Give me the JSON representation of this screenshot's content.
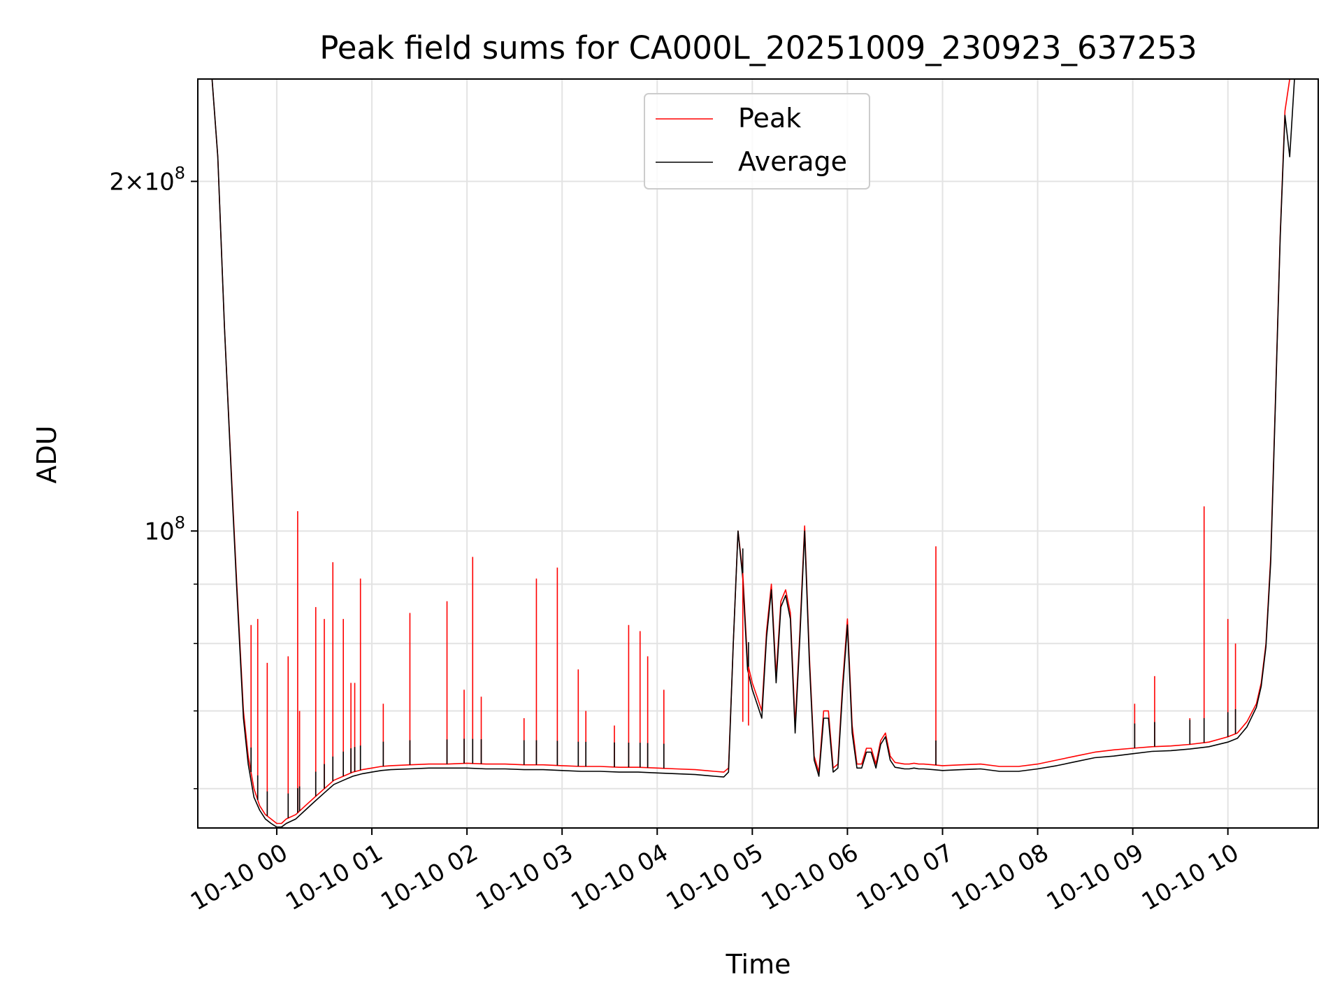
{
  "chart_data": {
    "type": "line",
    "title": "Peak field sums for CA000L_20251009_230923_637253",
    "xlabel": "Time",
    "ylabel": "ADU",
    "yscale": "log",
    "ylim": [
      55500000,
      245000000
    ],
    "xlim_hours": [
      -0.83,
      10.95
    ],
    "grid": true,
    "legend_position": "top-center",
    "x_tick_hours": [
      0,
      1,
      2,
      3,
      4,
      5,
      6,
      7,
      8,
      9,
      10
    ],
    "x_tick_labels": [
      "10-10 00",
      "10-10 01",
      "10-10 02",
      "10-10 03",
      "10-10 04",
      "10-10 05",
      "10-10 06",
      "10-10 07",
      "10-10 08",
      "10-10 09",
      "10-10 10"
    ],
    "y_major_ticks": [
      {
        "value": 100000000,
        "mantissa": "",
        "exponent": "8"
      },
      {
        "value": 200000000,
        "mantissa": "2",
        "exponent": "8"
      }
    ],
    "y_minor_ticks": [
      60000000,
      70000000,
      80000000,
      90000000
    ],
    "series": [
      {
        "name": "Peak",
        "color": "#ff0000",
        "x_hours": [
          -0.83,
          -0.68,
          -0.62,
          -0.55,
          -0.46,
          -0.42,
          -0.38,
          -0.35,
          -0.3,
          -0.24,
          -0.18,
          -0.12,
          -0.06,
          0.0,
          0.05,
          0.1,
          0.2,
          0.3,
          0.4,
          0.5,
          0.6,
          0.7,
          0.8,
          0.9,
          1.0,
          1.1,
          1.2,
          1.4,
          1.6,
          1.8,
          2.0,
          2.2,
          2.4,
          2.6,
          2.8,
          3.0,
          3.2,
          3.4,
          3.6,
          3.8,
          4.0,
          4.2,
          4.4,
          4.6,
          4.7,
          4.75,
          4.8,
          4.85,
          4.9,
          4.95,
          5.0,
          5.05,
          5.1,
          5.15,
          5.2,
          5.25,
          5.3,
          5.35,
          5.4,
          5.45,
          5.5,
          5.55,
          5.6,
          5.65,
          5.7,
          5.75,
          5.8,
          5.85,
          5.9,
          5.95,
          6.0,
          6.05,
          6.1,
          6.15,
          6.2,
          6.25,
          6.3,
          6.35,
          6.4,
          6.45,
          6.5,
          6.55,
          6.6,
          6.65,
          6.7,
          6.75,
          6.8,
          6.9,
          7.0,
          7.2,
          7.4,
          7.6,
          7.8,
          8.0,
          8.2,
          8.4,
          8.6,
          8.8,
          9.0,
          9.2,
          9.4,
          9.6,
          9.8,
          10.0,
          10.1,
          10.2,
          10.3,
          10.35,
          10.4,
          10.45,
          10.5,
          10.55,
          10.6,
          10.65,
          10.7,
          10.75,
          10.8,
          10.95
        ],
        "values": [
          245000000,
          245000000,
          210000000,
          150000000,
          105000000,
          90000000,
          78000000,
          70000000,
          64000000,
          60000000,
          58000000,
          57000000,
          56500000,
          56000000,
          56000000,
          56500000,
          57000000,
          58000000,
          59000000,
          60000000,
          61000000,
          61500000,
          62000000,
          62300000,
          62500000,
          62700000,
          62800000,
          62900000,
          63000000,
          63000000,
          63100000,
          63000000,
          63000000,
          62900000,
          62900000,
          62800000,
          62700000,
          62700000,
          62600000,
          62600000,
          62500000,
          62400000,
          62300000,
          62100000,
          62000000,
          62500000,
          80000000,
          100000000,
          92000000,
          77000000,
          74000000,
          72000000,
          70000000,
          82000000,
          90000000,
          75000000,
          87000000,
          89000000,
          85000000,
          68000000,
          82000000,
          101000000,
          78000000,
          64000000,
          62000000,
          70000000,
          70000000,
          62500000,
          63000000,
          74000000,
          84000000,
          68000000,
          63000000,
          63000000,
          65000000,
          65000000,
          63000000,
          66000000,
          67000000,
          64000000,
          63200000,
          63100000,
          63000000,
          63000000,
          63100000,
          63000000,
          63000000,
          62900000,
          62800000,
          62900000,
          63000000,
          62700000,
          62700000,
          63000000,
          63500000,
          64000000,
          64500000,
          64800000,
          65000000,
          65200000,
          65300000,
          65500000,
          65800000,
          66500000,
          67000000,
          68500000,
          71000000,
          74000000,
          80000000,
          95000000,
          130000000,
          180000000,
          230000000,
          245000000,
          245000000,
          245000000,
          245000000,
          245000000
        ]
      },
      {
        "name": "Average",
        "color": "#000000",
        "x_hours": [
          -0.83,
          -0.68,
          -0.62,
          -0.55,
          -0.46,
          -0.42,
          -0.38,
          -0.35,
          -0.3,
          -0.24,
          -0.18,
          -0.12,
          -0.06,
          0.0,
          0.05,
          0.1,
          0.2,
          0.3,
          0.4,
          0.5,
          0.6,
          0.7,
          0.8,
          0.9,
          1.0,
          1.1,
          1.2,
          1.4,
          1.6,
          1.8,
          2.0,
          2.2,
          2.4,
          2.6,
          2.8,
          3.0,
          3.2,
          3.4,
          3.6,
          3.8,
          4.0,
          4.2,
          4.4,
          4.6,
          4.7,
          4.75,
          4.8,
          4.85,
          4.9,
          4.95,
          5.0,
          5.05,
          5.1,
          5.15,
          5.2,
          5.25,
          5.3,
          5.35,
          5.4,
          5.45,
          5.5,
          5.55,
          5.6,
          5.65,
          5.7,
          5.75,
          5.8,
          5.85,
          5.9,
          5.95,
          6.0,
          6.05,
          6.1,
          6.15,
          6.2,
          6.25,
          6.3,
          6.35,
          6.4,
          6.45,
          6.5,
          6.55,
          6.6,
          6.65,
          6.7,
          6.75,
          6.8,
          6.9,
          7.0,
          7.2,
          7.4,
          7.6,
          7.8,
          8.0,
          8.2,
          8.4,
          8.6,
          8.8,
          9.0,
          9.2,
          9.4,
          9.6,
          9.8,
          10.0,
          10.1,
          10.2,
          10.3,
          10.35,
          10.4,
          10.45,
          10.5,
          10.55,
          10.6,
          10.65,
          10.7,
          10.75,
          10.8,
          10.95
        ],
        "values": [
          245000000,
          245000000,
          210000000,
          150000000,
          104000000,
          89000000,
          77000000,
          69000000,
          63000000,
          59000000,
          57500000,
          56500000,
          56000000,
          55600000,
          55600000,
          56000000,
          56500000,
          57500000,
          58500000,
          59500000,
          60500000,
          61000000,
          61500000,
          61800000,
          62000000,
          62200000,
          62300000,
          62400000,
          62500000,
          62500000,
          62500000,
          62400000,
          62400000,
          62300000,
          62300000,
          62200000,
          62100000,
          62100000,
          62000000,
          62000000,
          61900000,
          61800000,
          61700000,
          61500000,
          61400000,
          62000000,
          80000000,
          100000000,
          91000000,
          76000000,
          73000000,
          71000000,
          69000000,
          81000000,
          89000000,
          74000000,
          86000000,
          88000000,
          84000000,
          67000000,
          81000000,
          100000000,
          77000000,
          63500000,
          61500000,
          69000000,
          69000000,
          62000000,
          62500000,
          73000000,
          83000000,
          67000000,
          62500000,
          62500000,
          64500000,
          64500000,
          62500000,
          65500000,
          66500000,
          63500000,
          62600000,
          62500000,
          62400000,
          62400000,
          62500000,
          62400000,
          62400000,
          62300000,
          62200000,
          62300000,
          62400000,
          62100000,
          62100000,
          62400000,
          62800000,
          63300000,
          63800000,
          64000000,
          64300000,
          64600000,
          64700000,
          64900000,
          65200000,
          65800000,
          66300000,
          67800000,
          70500000,
          73500000,
          79500000,
          94000000,
          129000000,
          179000000,
          228000000,
          210000000,
          245000000,
          245000000,
          245000000,
          245000000
        ]
      }
    ],
    "spikes": [
      {
        "hour": -0.27,
        "value": 83000000
      },
      {
        "hour": -0.2,
        "value": 84000000
      },
      {
        "hour": -0.1,
        "value": 77000000
      },
      {
        "hour": 0.12,
        "value": 78000000
      },
      {
        "hour": 0.22,
        "value": 104000000
      },
      {
        "hour": 0.24,
        "value": 70000000
      },
      {
        "hour": 0.41,
        "value": 86000000
      },
      {
        "hour": 0.5,
        "value": 84000000
      },
      {
        "hour": 0.59,
        "value": 94000000
      },
      {
        "hour": 0.7,
        "value": 84000000
      },
      {
        "hour": 0.78,
        "value": 74000000
      },
      {
        "hour": 0.82,
        "value": 74000000
      },
      {
        "hour": 0.88,
        "value": 91000000
      },
      {
        "hour": 1.12,
        "value": 71000000
      },
      {
        "hour": 1.4,
        "value": 85000000
      },
      {
        "hour": 1.79,
        "value": 87000000
      },
      {
        "hour": 1.97,
        "value": 73000000
      },
      {
        "hour": 2.06,
        "value": 95000000
      },
      {
        "hour": 2.15,
        "value": 72000000
      },
      {
        "hour": 2.6,
        "value": 69000000
      },
      {
        "hour": 2.73,
        "value": 91000000
      },
      {
        "hour": 2.95,
        "value": 93000000
      },
      {
        "hour": 3.17,
        "value": 76000000
      },
      {
        "hour": 3.25,
        "value": 70000000
      },
      {
        "hour": 3.55,
        "value": 68000000
      },
      {
        "hour": 3.7,
        "value": 83000000
      },
      {
        "hour": 3.82,
        "value": 82000000
      },
      {
        "hour": 3.9,
        "value": 78000000
      },
      {
        "hour": 4.07,
        "value": 73000000
      },
      {
        "hour": 4.9,
        "value": 68500000
      },
      {
        "hour": 4.96,
        "value": 68000000
      },
      {
        "hour": 6.93,
        "value": 97000000
      },
      {
        "hour": 9.02,
        "value": 71000000
      },
      {
        "hour": 9.23,
        "value": 75000000
      },
      {
        "hour": 9.6,
        "value": 69000000
      },
      {
        "hour": 9.75,
        "value": 105000000
      },
      {
        "hour": 10.0,
        "value": 84000000
      },
      {
        "hour": 10.08,
        "value": 80000000
      }
    ]
  },
  "legend": {
    "peak_label": "Peak",
    "average_label": "Average"
  }
}
